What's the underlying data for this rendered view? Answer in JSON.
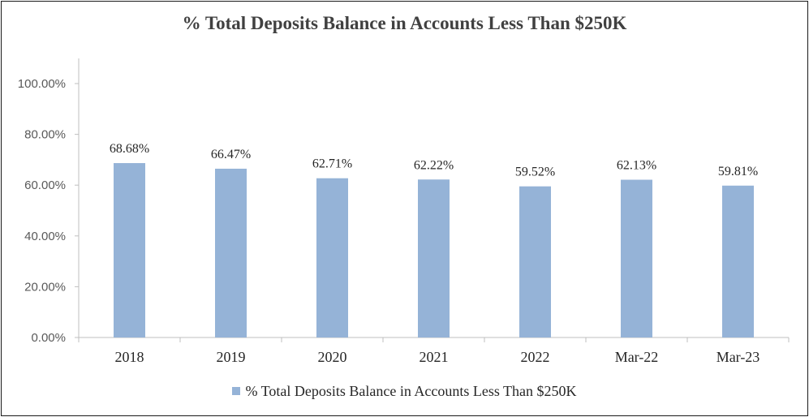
{
  "colors": {
    "bar": "#95b3d7",
    "axis": "#bfbfbf",
    "text": "#262626"
  },
  "chart_data": {
    "type": "bar",
    "title": "% Total Deposits Balance in Accounts Less Than $250K",
    "categories": [
      "2018",
      "2019",
      "2020",
      "2021",
      "2022",
      "Mar-22",
      "Mar-23"
    ],
    "series": [
      {
        "name": "% Total Deposits Balance in Accounts Less Than $250K",
        "values": [
          68.68,
          66.47,
          62.71,
          62.22,
          59.52,
          62.13,
          59.81
        ],
        "labels": [
          "68.68%",
          "66.47%",
          "62.71%",
          "62.22%",
          "59.52%",
          "62.13%",
          "59.81%"
        ]
      }
    ],
    "ylim": [
      0,
      100
    ],
    "yticks": [
      0,
      20,
      40,
      60,
      80,
      100
    ],
    "ytick_labels": [
      "0.00%",
      "20.00%",
      "40.00%",
      "60.00%",
      "80.00%",
      "100.00%"
    ],
    "xlabel": "",
    "ylabel": "",
    "legend_position": "bottom",
    "grid": false
  }
}
